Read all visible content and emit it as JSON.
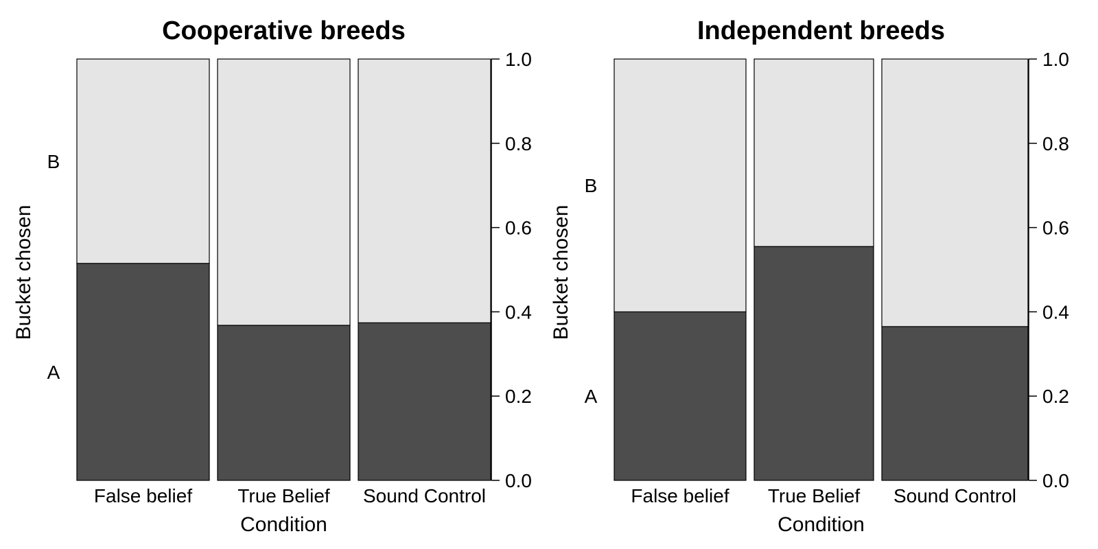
{
  "chart_data": [
    {
      "type": "bar",
      "subtype": "spineplot",
      "title": "Cooperative breeds",
      "xlabel": "Condition",
      "ylabel": "Bucket chosen",
      "categories": [
        "False belief",
        "True Belief",
        "Sound Control"
      ],
      "category_widths": [
        0.32,
        0.32,
        0.32
      ],
      "levels": [
        "A",
        "B"
      ],
      "series": [
        {
          "name": "A",
          "color": "#4d4d4d",
          "values": [
            0.515,
            0.368,
            0.374
          ]
        },
        {
          "name": "B",
          "color": "#e5e5e5",
          "values": [
            0.485,
            0.632,
            0.626
          ]
        }
      ],
      "right_axis_ticks": [
        "0.0",
        "0.2",
        "0.4",
        "0.6",
        "0.8",
        "1.0"
      ],
      "ylim": [
        0,
        1
      ],
      "grid": false
    },
    {
      "type": "bar",
      "subtype": "spineplot",
      "title": "Independent breeds",
      "xlabel": "Condition",
      "ylabel": "Bucket chosen",
      "categories": [
        "False belief",
        "True Belief",
        "Sound Control"
      ],
      "category_widths": [
        0.32,
        0.29,
        0.355
      ],
      "levels": [
        "A",
        "B"
      ],
      "series": [
        {
          "name": "A",
          "color": "#4d4d4d",
          "values": [
            0.4,
            0.555,
            0.365
          ]
        },
        {
          "name": "B",
          "color": "#e5e5e5",
          "values": [
            0.6,
            0.445,
            0.635
          ]
        }
      ],
      "right_axis_ticks": [
        "0.0",
        "0.2",
        "0.4",
        "0.6",
        "0.8",
        "1.0"
      ],
      "ylim": [
        0,
        1
      ],
      "grid": false
    }
  ]
}
